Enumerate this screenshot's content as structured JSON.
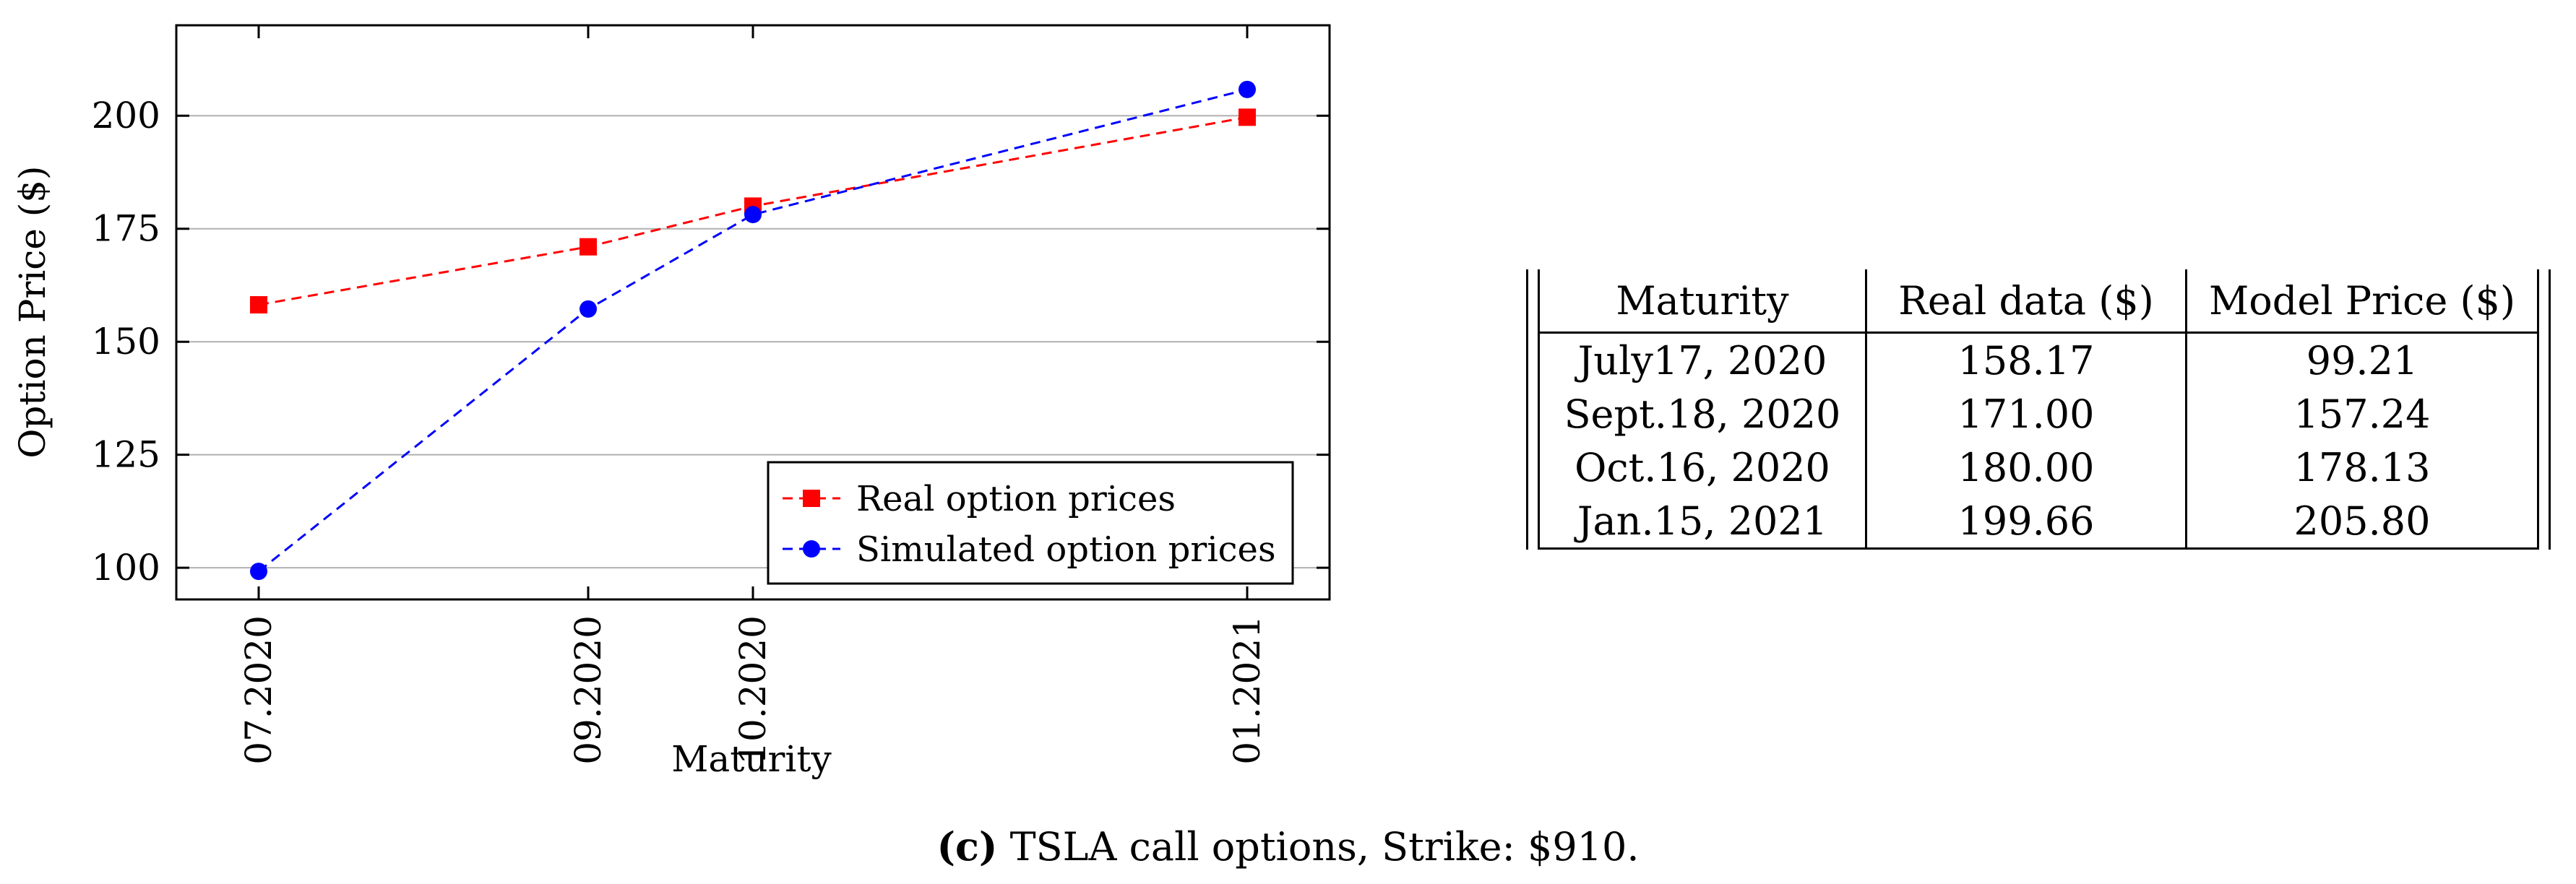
{
  "chart_data": {
    "type": "line",
    "title": "",
    "xlabel": "Maturity",
    "ylabel": "Option Price ($)",
    "x_ticks": [
      {
        "label": "07.2020",
        "month_index": 0
      },
      {
        "label": "09.2020",
        "month_index": 2
      },
      {
        "label": "10.2020",
        "month_index": 3
      },
      {
        "label": "01.2021",
        "month_index": 6
      }
    ],
    "x_range": [
      -0.5,
      6.5
    ],
    "y_ticks": [
      100,
      125,
      150,
      175,
      200
    ],
    "ylim": [
      93,
      220
    ],
    "grid": "horizontal",
    "legend_position": "bottom-right",
    "series": [
      {
        "name": "Real option prices",
        "color": "#ff0000",
        "marker": "square",
        "style": "dashed",
        "values": [
          158.17,
          171.0,
          180.0,
          199.66
        ]
      },
      {
        "name": "Simulated option prices",
        "color": "#0000ff",
        "marker": "circle",
        "style": "dashed",
        "values": [
          99.21,
          157.24,
          178.13,
          205.8
        ]
      }
    ]
  },
  "table": {
    "headers": [
      "Maturity",
      "Real data ($)",
      "Model Price ($)"
    ],
    "rows": [
      [
        "July17, 2020",
        "158.17",
        "99.21"
      ],
      [
        "Sept.18, 2020",
        "171.00",
        "157.24"
      ],
      [
        "Oct.16, 2020",
        "180.00",
        "178.13"
      ],
      [
        "Jan.15, 2021",
        "199.66",
        "205.80"
      ]
    ]
  },
  "caption": {
    "label": "(c)",
    "text": "TSLA call options, Strike: $910."
  }
}
